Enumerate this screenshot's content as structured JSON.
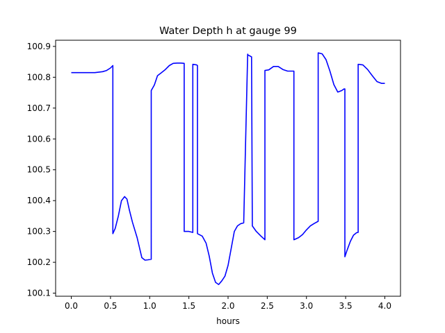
{
  "chart_data": {
    "type": "line",
    "title": "Water Depth h at gauge 99",
    "xlabel": "hours",
    "ylabel": "",
    "xlim": [
      -0.2,
      4.2
    ],
    "ylim": [
      100.09,
      100.92
    ],
    "x_ticks": [
      0.0,
      0.5,
      1.0,
      1.5,
      2.0,
      2.5,
      3.0,
      3.5,
      4.0
    ],
    "x_tick_labels": [
      "0.0",
      "0.5",
      "1.0",
      "1.5",
      "2.0",
      "2.5",
      "3.0",
      "3.5",
      "4.0"
    ],
    "y_ticks": [
      100.1,
      100.2,
      100.3,
      100.4,
      100.5,
      100.6,
      100.7,
      100.8,
      100.9
    ],
    "y_tick_labels": [
      "100.1",
      "100.2",
      "100.3",
      "100.4",
      "100.5",
      "100.6",
      "100.7",
      "100.8",
      "100.9"
    ],
    "grid": false,
    "series": [
      {
        "color": "#0000ff",
        "x": [
          0.0,
          0.1,
          0.2,
          0.3,
          0.4,
          0.45,
          0.5,
          0.53,
          0.53,
          0.56,
          0.6,
          0.64,
          0.68,
          0.71,
          0.74,
          0.78,
          0.84,
          0.9,
          0.94,
          0.98,
          1.02,
          1.02,
          1.06,
          1.1,
          1.15,
          1.2,
          1.25,
          1.3,
          1.35,
          1.4,
          1.44,
          1.44,
          1.5,
          1.55,
          1.55,
          1.6,
          1.61,
          1.61,
          1.67,
          1.72,
          1.76,
          1.8,
          1.84,
          1.88,
          1.92,
          1.96,
          2.0,
          2.04,
          2.08,
          2.12,
          2.16,
          2.2,
          2.25,
          2.25,
          2.3,
          2.31,
          2.31,
          2.36,
          2.42,
          2.47,
          2.47,
          2.52,
          2.58,
          2.64,
          2.7,
          2.76,
          2.8,
          2.84,
          2.84,
          2.9,
          2.95,
          3.0,
          3.05,
          3.1,
          3.15,
          3.15,
          3.2,
          3.25,
          3.3,
          3.35,
          3.4,
          3.45,
          3.48,
          3.49,
          3.49,
          3.52,
          3.56,
          3.6,
          3.64,
          3.66,
          3.66,
          3.72,
          3.78,
          3.84,
          3.9,
          3.96,
          4.0
        ],
        "y": [
          100.815,
          100.815,
          100.815,
          100.815,
          100.818,
          100.822,
          100.83,
          100.838,
          100.293,
          100.31,
          100.35,
          100.4,
          100.413,
          100.405,
          100.37,
          100.33,
          100.28,
          100.215,
          100.207,
          100.208,
          100.21,
          100.757,
          100.775,
          100.805,
          100.815,
          100.825,
          100.838,
          100.845,
          100.846,
          100.846,
          100.845,
          100.3,
          100.3,
          100.297,
          100.842,
          100.84,
          100.838,
          100.293,
          100.285,
          100.262,
          100.22,
          100.165,
          100.135,
          100.128,
          100.14,
          100.155,
          100.19,
          100.245,
          100.3,
          100.318,
          100.325,
          100.328,
          100.875,
          100.873,
          100.866,
          100.32,
          100.318,
          100.3,
          100.285,
          100.273,
          100.822,
          100.824,
          100.835,
          100.835,
          100.825,
          100.82,
          100.82,
          100.82,
          100.273,
          100.28,
          100.29,
          100.305,
          100.318,
          100.326,
          100.333,
          100.879,
          100.876,
          100.857,
          100.82,
          100.776,
          100.752,
          100.757,
          100.762,
          100.762,
          100.218,
          100.24,
          100.268,
          100.288,
          100.296,
          100.297,
          100.842,
          100.84,
          100.825,
          100.805,
          100.786,
          100.78,
          100.78
        ]
      }
    ]
  }
}
